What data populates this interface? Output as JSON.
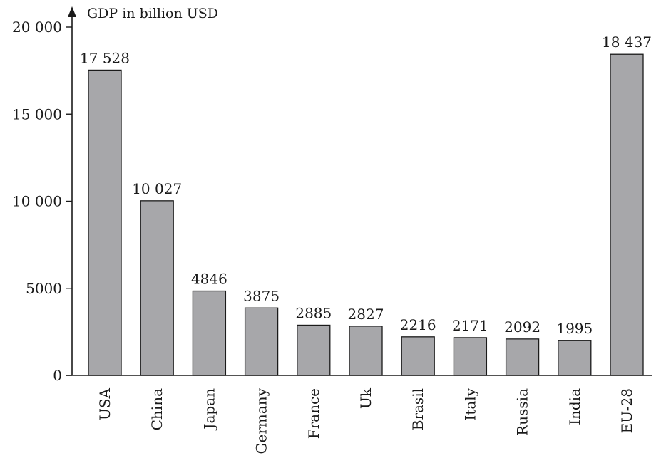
{
  "chart_data": {
    "type": "bar",
    "title": "",
    "ylabel": "GDP in billion USD",
    "xlabel": "",
    "categories": [
      "USA",
      "China",
      "Japan",
      "Germany",
      "France",
      "Uk",
      "Brasil",
      "Italy",
      "Russia",
      "India",
      "EU-28"
    ],
    "values": [
      17528,
      10027,
      4846,
      3875,
      2885,
      2827,
      2216,
      2171,
      2092,
      1995,
      18437
    ],
    "value_labels": [
      "17 528",
      "10 027",
      "4846",
      "3875",
      "2885",
      "2827",
      "2216",
      "2171",
      "2092",
      "1995",
      "18 437"
    ],
    "ylim": [
      0,
      20000
    ],
    "yticks": [
      0,
      5000,
      10000,
      15000,
      20000
    ],
    "ytick_labels": [
      "0",
      "5000",
      "10 000",
      "15 000",
      "20 000"
    ],
    "grid": false,
    "bar_color": "#a7a7aa"
  }
}
